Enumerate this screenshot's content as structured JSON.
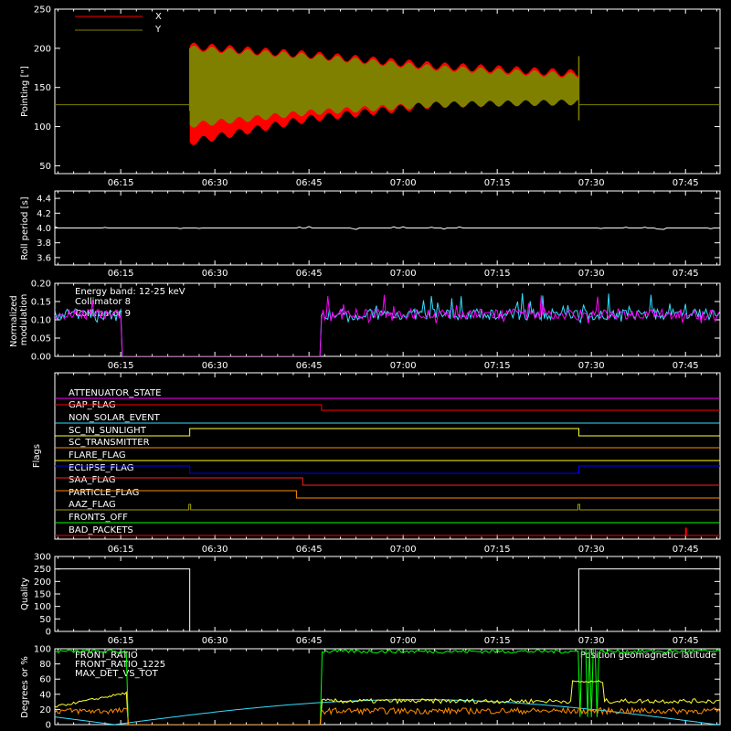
{
  "x_ticks": [
    "06:15",
    "06:30",
    "06:45",
    "07:00",
    "07:15",
    "07:30",
    "07:45"
  ],
  "colors": {
    "x": "#ff0000",
    "y": "#808000",
    "cyan": "#33ddff",
    "magenta": "#ff00ff",
    "green": "#00ff00",
    "yellow": "#ffff33",
    "orange": "#ff8c00",
    "blue": "#0000ff"
  },
  "chart_data": [
    {
      "type": "area",
      "name": "pointing",
      "ylabel": "Pointing [\"]",
      "yticks": [
        "250",
        "200",
        "150",
        "100",
        "50"
      ],
      "ylim": [
        40,
        250
      ],
      "legend": [
        "X",
        "Y"
      ],
      "series": [
        {
          "name": "X",
          "color": "#ff0000",
          "x": [
            "06:26",
            "06:45",
            "07:05",
            "07:28"
          ],
          "low": [
            80,
            110,
            128,
            133
          ],
          "high": [
            203,
            192,
            178,
            168
          ]
        },
        {
          "name": "Y",
          "color": "#808000",
          "x": [
            "06:26",
            "06:45",
            "07:05",
            "07:28"
          ],
          "low": [
            102,
            118,
            128,
            131
          ],
          "high": [
            200,
            190,
            175,
            165
          ]
        }
      ],
      "baseline": 128
    },
    {
      "type": "line",
      "name": "roll",
      "ylabel": "Roll period [s]",
      "yticks": [
        "4.4",
        "4.2",
        "4.0",
        "3.8",
        "3.6"
      ],
      "ylim": [
        3.5,
        4.5
      ],
      "value": 4.0
    },
    {
      "type": "line",
      "name": "modulation",
      "ylabel": "Normalized modulation",
      "yticks": [
        "0.20",
        "0.15",
        "0.10",
        "0.05",
        "0.00"
      ],
      "ylim": [
        0,
        0.2
      ],
      "annotation": "Energy band: 12-25 keV",
      "legend": [
        "Collimator 8",
        "Collimator 9"
      ]
    },
    {
      "type": "table",
      "name": "flags",
      "ylabel": "Flags",
      "flags": [
        {
          "name": "ATTENUATOR_STATE",
          "color": "#ff00ff"
        },
        {
          "name": "GAP_FLAG",
          "color": "#ff0000"
        },
        {
          "name": "NON_SOLAR_EVENT",
          "color": "#33ddff"
        },
        {
          "name": "SC_IN_SUNLIGHT",
          "color": "#ffff33"
        },
        {
          "name": "SC_TRANSMITTER",
          "color": "#ff8c00"
        },
        {
          "name": "FLARE_FLAG",
          "color": "#ffff00"
        },
        {
          "name": "ECLIPSE_FLAG",
          "color": "#0000ff"
        },
        {
          "name": "SAA_FLAG",
          "color": "#ff2020"
        },
        {
          "name": "PARTICLE_FLAG",
          "color": "#ff8c00"
        },
        {
          "name": "AAZ_FLAG",
          "color": "#a0a000"
        },
        {
          "name": "FRONTS_OFF",
          "color": "#00ff00"
        },
        {
          "name": "BAD_PACKETS",
          "color": "#ff0000"
        }
      ]
    },
    {
      "type": "line",
      "name": "quality",
      "ylabel": "Quality",
      "yticks": [
        "300",
        "250",
        "200",
        "150",
        "100",
        "50",
        "0"
      ],
      "ylim": [
        0,
        300
      ]
    },
    {
      "type": "line",
      "name": "degrees",
      "ylabel": "Degrees or %",
      "yticks": [
        "100",
        "80",
        "60",
        "40",
        "20",
        "0"
      ],
      "ylim": [
        0,
        100
      ],
      "legend": [
        "FRONT_RATIO",
        "FRONT_RATIO_1225",
        "MAX_DET_VS_TOT"
      ],
      "right_annotation": "Position geomagnetic latitude"
    }
  ]
}
